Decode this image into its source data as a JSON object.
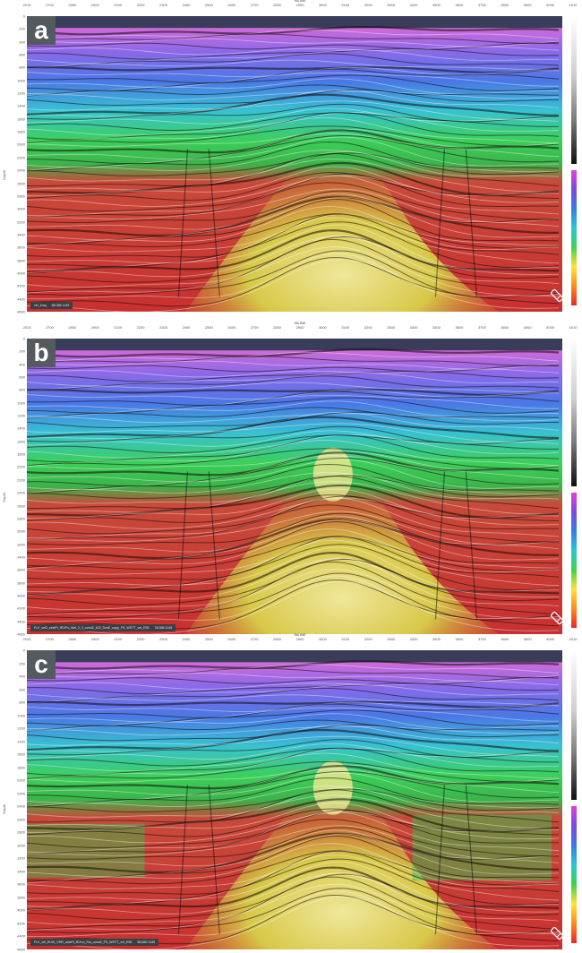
{
  "axes": {
    "inline_title": "INLINE",
    "xticks": [
      "2015",
      "2700",
      "2800",
      "2900",
      "2100",
      "2200",
      "2300",
      "2400",
      "2500",
      "2600",
      "2700",
      "2800",
      "2900",
      "3000",
      "3100",
      "3200",
      "3300",
      "3400",
      "3500",
      "3600",
      "3700",
      "3800",
      "3900",
      "4000",
      "4010"
    ],
    "depth_title": "Depth",
    "depth_ticks": [
      "0",
      "200",
      "400",
      "600",
      "800",
      "1000",
      "1200",
      "1400",
      "1600",
      "1800",
      "2000",
      "2200",
      "2400",
      "2600",
      "2800",
      "3000",
      "3200",
      "3400",
      "3600",
      "3800",
      "4000",
      "4200",
      "4400",
      "4600"
    ]
  },
  "panels": [
    {
      "id": "a",
      "label": "a",
      "status_text": "vel_1mq",
      "status_value": "88,086 1145"
    },
    {
      "id": "b",
      "label": "b",
      "status_text": "FLV_vel2_seisPt_fEXPu_Wel_2_2_cond2_k32_DzsE_copy_FS_WSTT_vel_E55",
      "status_value": "78,086 1145"
    },
    {
      "id": "c",
      "label": "c",
      "status_text": "FLV_vel_EUXI_VHR_seisPt_fEXno_Far_cond2_FS_WSTT_vel_E55",
      "status_value": "88,880 1145"
    }
  ],
  "icons": {
    "tool": "pencil-eraser-icon"
  }
}
